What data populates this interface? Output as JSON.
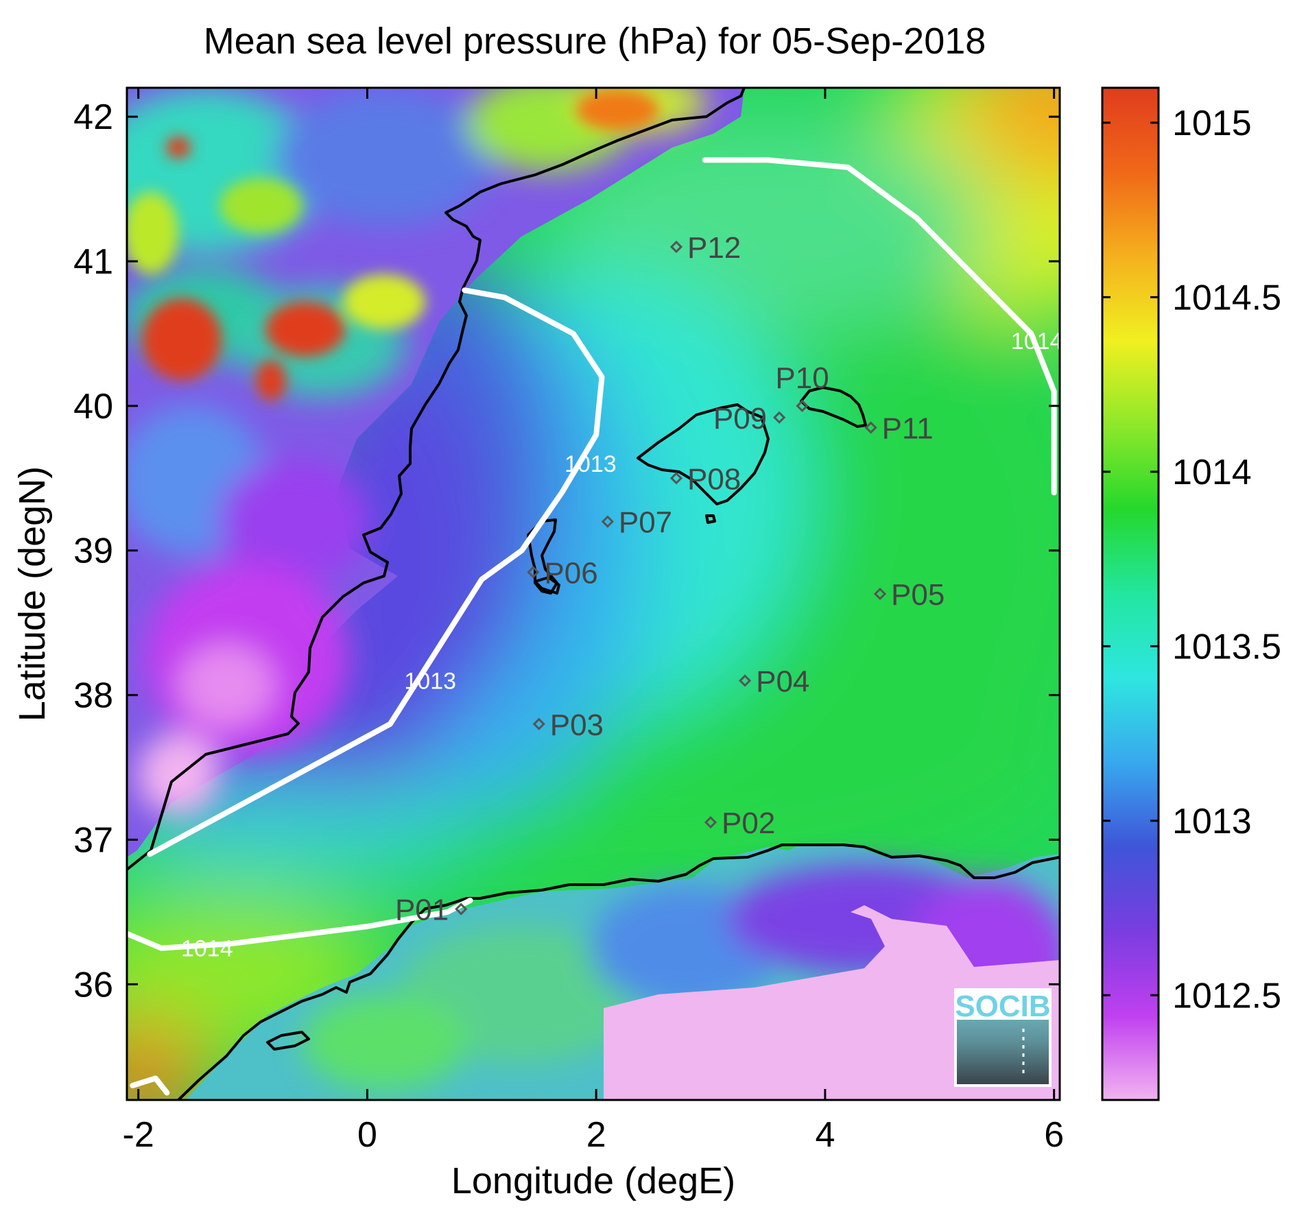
{
  "chart_data": {
    "type": "heatmap",
    "title": "Mean sea level pressure (hPa) for 05-Sep-2018",
    "xlabel": "Longitude (degE)",
    "ylabel": "Latitude (degN)",
    "xlim": [
      -2.1,
      6.05
    ],
    "ylim": [
      35.2,
      42.2
    ],
    "x_ticks": [
      -2,
      0,
      2,
      4,
      6
    ],
    "x_tick_labels": [
      "-2",
      "0",
      "2",
      "4",
      "6"
    ],
    "y_ticks": [
      36,
      37,
      38,
      39,
      40,
      41,
      42
    ],
    "y_tick_labels": [
      "36",
      "37",
      "38",
      "39",
      "40",
      "41",
      "42"
    ],
    "colorbar": {
      "range": [
        1012.2,
        1015.1
      ],
      "ticks": [
        1012.5,
        1013,
        1013.5,
        1014,
        1014.5,
        1015
      ],
      "tick_labels": [
        "1012.5",
        "1013",
        "1013.5",
        "1014",
        "1014.5",
        "1015"
      ],
      "colormap": [
        "#f2b3f0",
        "#c040f0",
        "#7a3de0",
        "#3f55d8",
        "#38a8ee",
        "#2ee6e0",
        "#23e6a0",
        "#24d82c",
        "#8ee82a",
        "#f0f020",
        "#f5b01e",
        "#f06818",
        "#e03c1e"
      ]
    },
    "contours": [
      {
        "label": "1013",
        "points": [
          [
            -1.9,
            36.9
          ],
          [
            -1.2,
            37.2
          ],
          [
            0.2,
            37.8
          ],
          [
            0.6,
            38.3
          ],
          [
            1.0,
            38.8
          ],
          [
            1.35,
            39.0
          ],
          [
            1.7,
            39.4
          ],
          [
            2.0,
            39.8
          ],
          [
            2.05,
            40.2
          ],
          [
            1.8,
            40.5
          ],
          [
            1.2,
            40.75
          ],
          [
            0.85,
            40.8
          ]
        ],
        "label_positions": [
          [
            0.55,
            38.1
          ],
          [
            1.95,
            39.6
          ]
        ]
      },
      {
        "label": "1014",
        "points": [
          [
            -2.1,
            36.35
          ],
          [
            -1.8,
            36.25
          ],
          [
            -1.2,
            36.28
          ],
          [
            0.0,
            36.4
          ],
          [
            0.7,
            36.5
          ],
          [
            0.9,
            36.58
          ]
        ],
        "label_positions": [
          [
            -1.4,
            36.25
          ]
        ]
      },
      {
        "label": "1014",
        "points": [
          [
            2.95,
            41.7
          ],
          [
            3.5,
            41.7
          ],
          [
            4.2,
            41.65
          ],
          [
            4.8,
            41.3
          ],
          [
            5.3,
            40.9
          ],
          [
            5.8,
            40.5
          ],
          [
            6.0,
            40.1
          ],
          [
            6.0,
            39.4
          ]
        ],
        "label_positions": [
          [
            5.85,
            40.45
          ]
        ]
      },
      {
        "label": "",
        "points": [
          [
            -2.05,
            35.3
          ],
          [
            -1.85,
            35.35
          ],
          [
            -1.75,
            35.25
          ]
        ],
        "label_positions": []
      }
    ],
    "points": [
      {
        "label": "P01",
        "x": 0.82,
        "y": 36.52,
        "label_side": "left"
      },
      {
        "label": "P02",
        "x": 3.0,
        "y": 37.12,
        "label_side": "right"
      },
      {
        "label": "P03",
        "x": 1.5,
        "y": 37.8,
        "label_side": "right"
      },
      {
        "label": "P04",
        "x": 3.3,
        "y": 38.1,
        "label_side": "right"
      },
      {
        "label": "P05",
        "x": 4.48,
        "y": 38.7,
        "label_side": "right"
      },
      {
        "label": "P06",
        "x": 1.45,
        "y": 38.85,
        "label_side": "right"
      },
      {
        "label": "P07",
        "x": 2.1,
        "y": 39.2,
        "label_side": "right"
      },
      {
        "label": "P08",
        "x": 2.7,
        "y": 39.5,
        "label_side": "right"
      },
      {
        "label": "P09",
        "x": 3.6,
        "y": 39.92,
        "label_side": "left"
      },
      {
        "label": "P10",
        "x": 3.8,
        "y": 40.0,
        "label_side": "top"
      },
      {
        "label": "P11",
        "x": 4.4,
        "y": 39.85,
        "label_side": "right"
      },
      {
        "label": "P12",
        "x": 2.7,
        "y": 41.1,
        "label_side": "right"
      }
    ],
    "grid": false,
    "legend": "colorbar-right"
  },
  "logo": {
    "text": "SOCIB"
  },
  "colors": {
    "coastline": "#000000",
    "contour": "#ffffff",
    "marker": "#555555"
  }
}
